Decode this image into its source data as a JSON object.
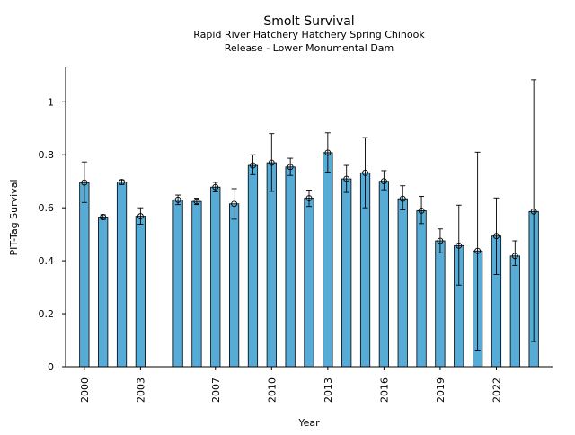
{
  "chart_data": {
    "type": "bar",
    "title": "Smolt Survival",
    "subtitle_lines": [
      "Rapid River Hatchery Hatchery Spring Chinook",
      "Release - Lower Monumental Dam"
    ],
    "xlabel": "Year",
    "ylabel": "PIT-Tag Survival",
    "ylim": [
      0,
      1.13
    ],
    "yticks": [
      0,
      0.2,
      0.4,
      0.6,
      0.8,
      1
    ],
    "ytick_labels": [
      "0",
      "0.2",
      "0.4",
      "0.6",
      "0.8",
      "1"
    ],
    "xticks": [
      2000,
      2003,
      2007,
      2010,
      2013,
      2016,
      2019,
      2022
    ],
    "xtick_labels": [
      "2000",
      "2003",
      "2007",
      "2010",
      "2013",
      "2016",
      "2019",
      "2022"
    ],
    "grid": false,
    "bar_color": "#56acd6",
    "edge_color": "#000000",
    "x": [
      2000,
      2001,
      2002,
      2003,
      2005,
      2006,
      2007,
      2008,
      2009,
      2010,
      2011,
      2012,
      2013,
      2014,
      2015,
      2016,
      2017,
      2018,
      2019,
      2020,
      2021,
      2022,
      2023,
      2024
    ],
    "values": [
      0.695,
      0.565,
      0.697,
      0.568,
      0.63,
      0.624,
      0.678,
      0.615,
      0.76,
      0.77,
      0.754,
      0.636,
      0.808,
      0.709,
      0.732,
      0.7,
      0.634,
      0.589,
      0.475,
      0.457,
      0.437,
      0.493,
      0.418,
      0.586
    ],
    "err_low": [
      0.62,
      0.556,
      0.688,
      0.538,
      0.612,
      0.612,
      0.66,
      0.557,
      0.725,
      0.662,
      0.722,
      0.605,
      0.735,
      0.658,
      0.6,
      0.668,
      0.592,
      0.54,
      0.43,
      0.308,
      0.063,
      0.348,
      0.382,
      0.095
    ],
    "err_high": [
      0.773,
      0.574,
      0.705,
      0.6,
      0.648,
      0.636,
      0.696,
      0.672,
      0.8,
      0.88,
      0.787,
      0.667,
      0.883,
      0.76,
      0.865,
      0.74,
      0.683,
      0.643,
      0.52,
      0.61,
      0.81,
      0.637,
      0.475,
      1.083
    ]
  }
}
